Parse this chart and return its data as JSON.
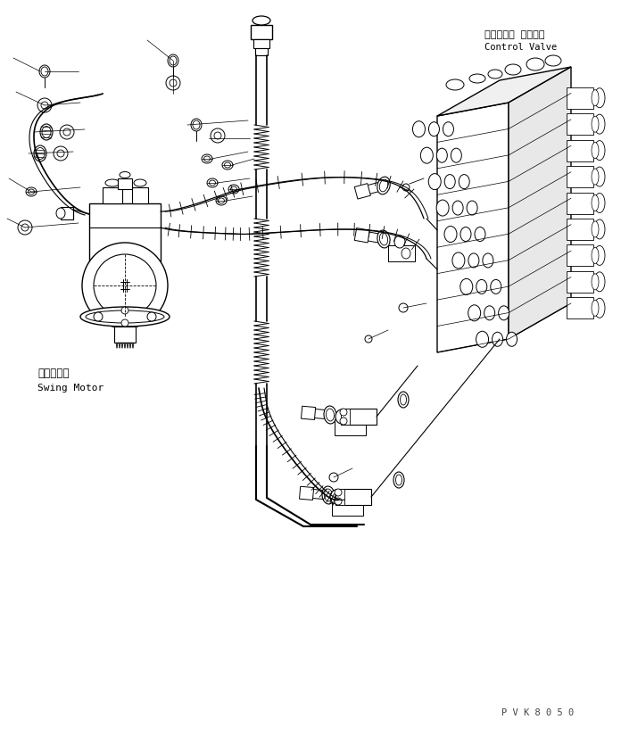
{
  "bg_color": "#ffffff",
  "line_color": "#000000",
  "label_swing_motor_jp": "旋回モータ",
  "label_swing_motor_en": "Swing Motor",
  "label_control_valve_jp": "コントロー ルバルプ",
  "label_control_valve_en": "Control Valve",
  "watermark": "P V K 8 0 5 0",
  "fig_width": 6.96,
  "fig_height": 8.25,
  "dpi": 100
}
